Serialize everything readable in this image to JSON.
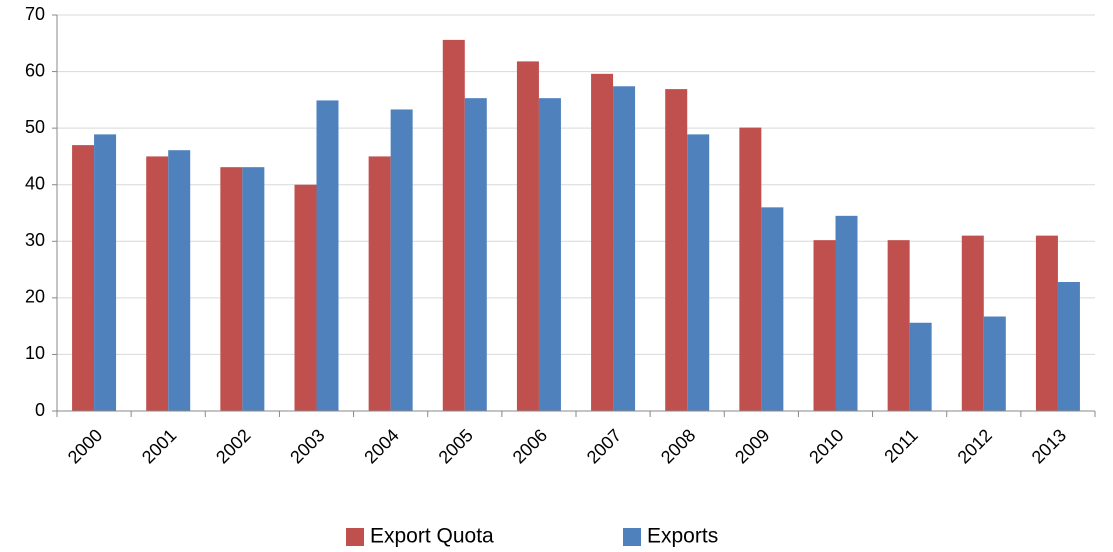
{
  "chart_data": {
    "type": "bar",
    "categories": [
      "2000",
      "2001",
      "2002",
      "2003",
      "2004",
      "2005",
      "2006",
      "2007",
      "2008",
      "2009",
      "2010",
      "2011",
      "2012",
      "2013"
    ],
    "series": [
      {
        "name": "Export Quota",
        "color": "#c0504d",
        "values": [
          47,
          45,
          43.1,
          40,
          45,
          65.6,
          61.8,
          59.6,
          56.9,
          50.1,
          30.2,
          30.2,
          31,
          31
        ]
      },
      {
        "name": "Exports",
        "color": "#4f81bd",
        "values": [
          48.9,
          46.1,
          43.1,
          54.9,
          53.3,
          55.3,
          55.3,
          57.4,
          48.9,
          36,
          34.5,
          15.6,
          16.7,
          22.8
        ]
      }
    ],
    "ylim": [
      0,
      70
    ],
    "yticks": [
      0,
      10,
      20,
      30,
      40,
      50,
      60,
      70
    ],
    "grid": true,
    "legend": "bottom"
  }
}
